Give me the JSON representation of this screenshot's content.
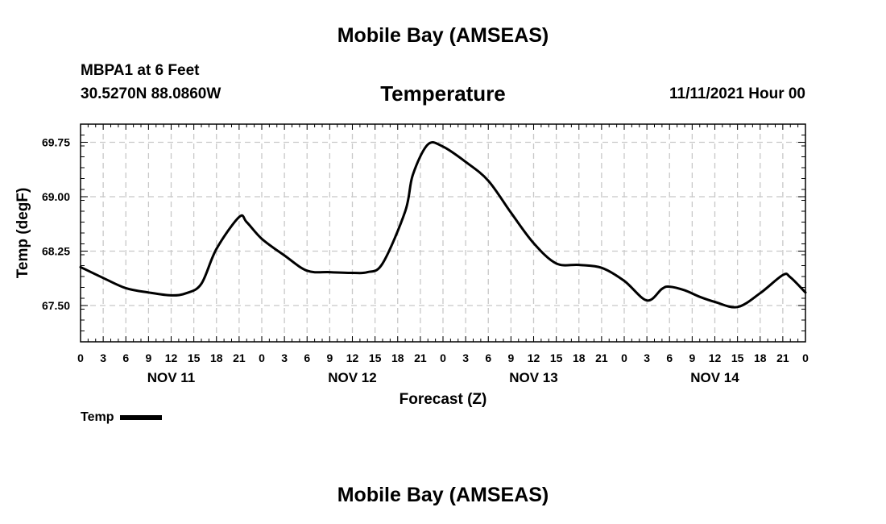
{
  "header": {
    "title": "Mobile Bay (AMSEAS)",
    "station": "MBPA1 at 6 Feet",
    "coords": "30.5270N  88.0860W",
    "run_time": "11/11/2021 Hour 00"
  },
  "footer": {
    "title": "Mobile Bay (AMSEAS)"
  },
  "chart_data": {
    "type": "line",
    "title": "Temperature",
    "xlabel": "Forecast (Z)",
    "ylabel": "Temp (degF)",
    "xlim": [
      0,
      96
    ],
    "ylim": [
      67.0,
      70.0
    ],
    "x_tick_labels": [
      "0",
      "3",
      "6",
      "9",
      "12",
      "15",
      "18",
      "21",
      "0",
      "3",
      "6",
      "9",
      "12",
      "15",
      "18",
      "21",
      "0",
      "3",
      "6",
      "9",
      "12",
      "15",
      "18",
      "21",
      "0",
      "3",
      "6",
      "9",
      "12",
      "15",
      "18",
      "21",
      "0"
    ],
    "y_ticks": [
      67.5,
      68.25,
      69.0,
      69.75
    ],
    "y_tick_labels": [
      "67.50",
      "68.25",
      "69.00",
      "69.75"
    ],
    "day_labels": [
      {
        "label": "NOV 11",
        "x": 12
      },
      {
        "label": "NOV 12",
        "x": 36
      },
      {
        "label": "NOV 13",
        "x": 60
      },
      {
        "label": "NOV 14",
        "x": 84
      }
    ],
    "grid": true,
    "legend_position": "bottom-left",
    "series": [
      {
        "name": "Temp",
        "color": "#000000",
        "x": [
          0,
          3,
          6,
          9,
          12,
          14,
          16,
          18,
          21,
          22,
          24,
          27,
          30,
          33,
          36,
          38,
          40,
          43,
          44,
          46,
          48,
          51,
          54,
          57,
          60,
          63,
          66,
          69,
          72,
          75,
          77,
          78,
          80,
          82,
          84,
          87,
          90,
          93,
          94,
          96
        ],
        "y": [
          68.03,
          67.88,
          67.74,
          67.68,
          67.64,
          67.67,
          67.8,
          68.28,
          68.72,
          68.65,
          68.42,
          68.19,
          67.98,
          67.96,
          67.95,
          67.96,
          68.08,
          68.8,
          69.3,
          69.72,
          69.69,
          69.48,
          69.22,
          68.78,
          68.36,
          68.08,
          68.06,
          68.02,
          67.84,
          67.57,
          67.73,
          67.76,
          67.71,
          67.62,
          67.55,
          67.48,
          67.67,
          67.92,
          67.89,
          67.68
        ]
      }
    ]
  }
}
